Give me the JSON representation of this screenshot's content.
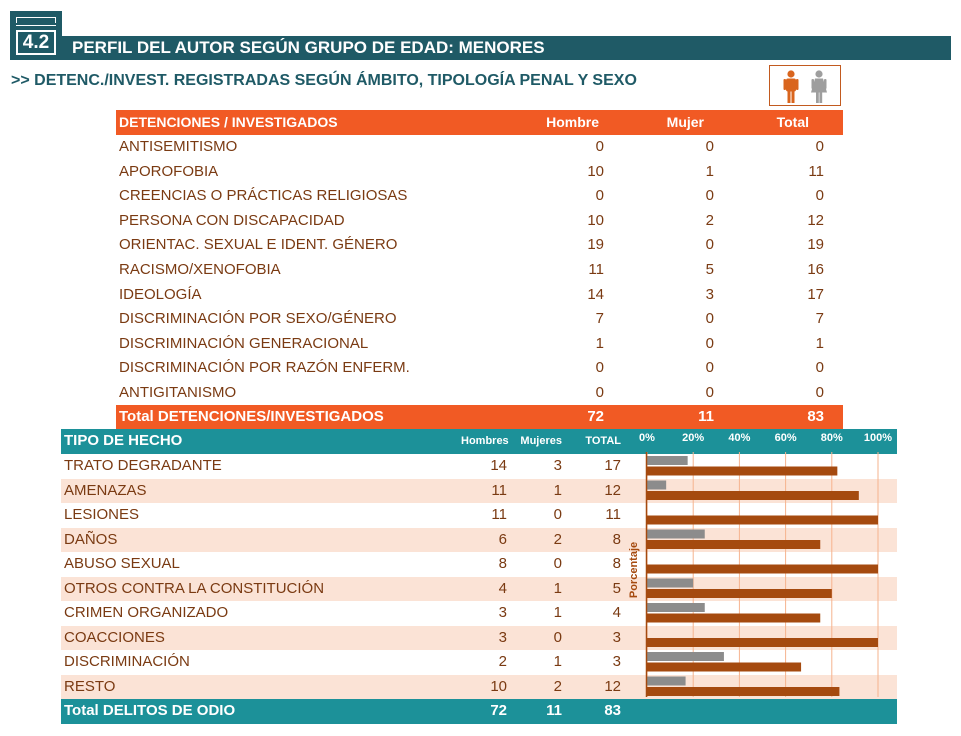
{
  "header": {
    "section_number": "4.2",
    "title": "PERFIL DEL AUTOR SEGÚN GRUPO DE EDAD: MENORES",
    "subtitle": ">> DETENC./INVEST. REGISTRADAS SEGÚN ÁMBITO, TIPOLOGÍA PENAL Y SEXO"
  },
  "colors": {
    "teal_dark": "#1f5a66",
    "teal": "#1c9199",
    "orange": "#f15a24",
    "brown": "#a54a0f",
    "grey": "#8c8c8c",
    "row_alt": "#fbe3d6"
  },
  "table1": {
    "headers": [
      "DETENCIONES / INVESTIGADOS",
      "Hombre",
      "Mujer",
      "Total"
    ],
    "rows": [
      {
        "label": "ANTISEMITISMO",
        "hombre": "0",
        "mujer": "0",
        "total": "0"
      },
      {
        "label": "APOROFOBIA",
        "hombre": "10",
        "mujer": "1",
        "total": "11"
      },
      {
        "label": "CREENCIAS O PRÁCTICAS RELIGIOSAS",
        "hombre": "0",
        "mujer": "0",
        "total": "0"
      },
      {
        "label": "PERSONA CON DISCAPACIDAD",
        "hombre": "10",
        "mujer": "2",
        "total": "12"
      },
      {
        "label": "ORIENTAC. SEXUAL E IDENT. GÉNERO",
        "hombre": "19",
        "mujer": "0",
        "total": "19"
      },
      {
        "label": "RACISMO/XENOFOBIA",
        "hombre": "11",
        "mujer": "5",
        "total": "16"
      },
      {
        "label": "IDEOLOGÍA",
        "hombre": "14",
        "mujer": "3",
        "total": "17"
      },
      {
        "label": "DISCRIMINACIÓN POR SEXO/GÉNERO",
        "hombre": "7",
        "mujer": "0",
        "total": "7"
      },
      {
        "label": "DISCRIMINACIÓN GENERACIONAL",
        "hombre": "1",
        "mujer": "0",
        "total": "1"
      },
      {
        "label": "DISCRIMINACIÓN POR RAZÓN ENFERM.",
        "hombre": "0",
        "mujer": "0",
        "total": "0"
      },
      {
        "label": "ANTIGITANISMO",
        "hombre": "0",
        "mujer": "0",
        "total": "0"
      }
    ],
    "total": {
      "label": "Total DETENCIONES/INVESTIGADOS",
      "hombre": "72",
      "mujer": "11",
      "total": "83"
    }
  },
  "table2": {
    "headers": [
      "TIPO DE HECHO",
      "Hombres",
      "Mujeres",
      "TOTAL"
    ],
    "rows": [
      {
        "label": "TRATO DEGRADANTE",
        "hombres": "14",
        "mujeres": "3",
        "total": "17"
      },
      {
        "label": "AMENAZAS",
        "hombres": "11",
        "mujeres": "1",
        "total": "12"
      },
      {
        "label": "LESIONES",
        "hombres": "11",
        "mujeres": "0",
        "total": "11"
      },
      {
        "label": "DAÑOS",
        "hombres": "6",
        "mujeres": "2",
        "total": "8"
      },
      {
        "label": "ABUSO SEXUAL",
        "hombres": "8",
        "mujeres": "0",
        "total": "8"
      },
      {
        "label": "OTROS CONTRA LA CONSTITUCIÓN",
        "hombres": "4",
        "mujeres": "1",
        "total": "5"
      },
      {
        "label": "CRIMEN ORGANIZADO",
        "hombres": "3",
        "mujeres": "1",
        "total": "4"
      },
      {
        "label": "COACCIONES",
        "hombres": "3",
        "mujeres": "0",
        "total": "3"
      },
      {
        "label": "DISCRIMINACIÓN",
        "hombres": "2",
        "mujeres": "1",
        "total": "3"
      },
      {
        "label": "RESTO",
        "hombres": "10",
        "mujeres": "2",
        "total": "12"
      }
    ],
    "total": {
      "label": "Total DELITOS DE ODIO",
      "hombres": "72",
      "mujeres": "11",
      "total": "83"
    }
  },
  "chart_data": {
    "type": "bar",
    "orientation": "horizontal",
    "ylabel": "Porcentaje",
    "xlim": [
      0,
      100
    ],
    "x_ticks": [
      "0%",
      "20%",
      "40%",
      "60%",
      "80%",
      "100%"
    ],
    "categories": [
      "TRATO DEGRADANTE",
      "AMENAZAS",
      "LESIONES",
      "DAÑOS",
      "ABUSO SEXUAL",
      "OTROS CONTRA LA CONSTITUCIÓN",
      "CRIMEN ORGANIZADO",
      "COACCIONES",
      "DISCRIMINACIÓN",
      "RESTO"
    ],
    "series": [
      {
        "color": "#8c8c8c",
        "values": [
          17.6,
          8.3,
          0,
          25.0,
          0,
          20.0,
          25.0,
          0,
          33.3,
          16.7
        ]
      },
      {
        "color": "#a54a0f",
        "values": [
          82.4,
          91.7,
          100,
          75.0,
          100,
          80.0,
          75.0,
          100,
          66.7,
          83.3
        ]
      }
    ]
  }
}
